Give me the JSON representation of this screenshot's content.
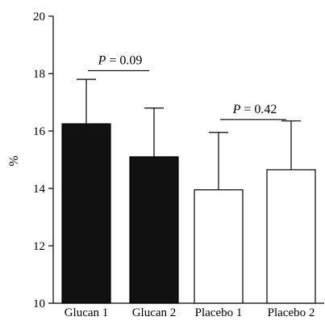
{
  "chart_data": {
    "type": "bar",
    "title": "",
    "xlabel": "",
    "ylabel": "%",
    "ylim": [
      10,
      20
    ],
    "yticks": [
      10,
      12,
      14,
      16,
      18,
      20
    ],
    "categories": [
      "Glucan 1",
      "Glucan 2",
      "Placebo 1",
      "Placebo 2"
    ],
    "values": [
      16.25,
      15.1,
      13.95,
      14.65
    ],
    "error_upper": [
      17.8,
      16.8,
      15.95,
      16.35
    ],
    "bar_fill": [
      "#111111",
      "#111111",
      "#ffffff",
      "#ffffff"
    ],
    "grid": false,
    "legend": "none",
    "annotations": [
      {
        "italic": "P",
        "text": " = 0.09",
        "between": [
          0,
          1
        ],
        "y": 18.1
      },
      {
        "italic": "P",
        "text": " = 0.42",
        "between": [
          2,
          3
        ],
        "y": 16.4
      }
    ]
  }
}
